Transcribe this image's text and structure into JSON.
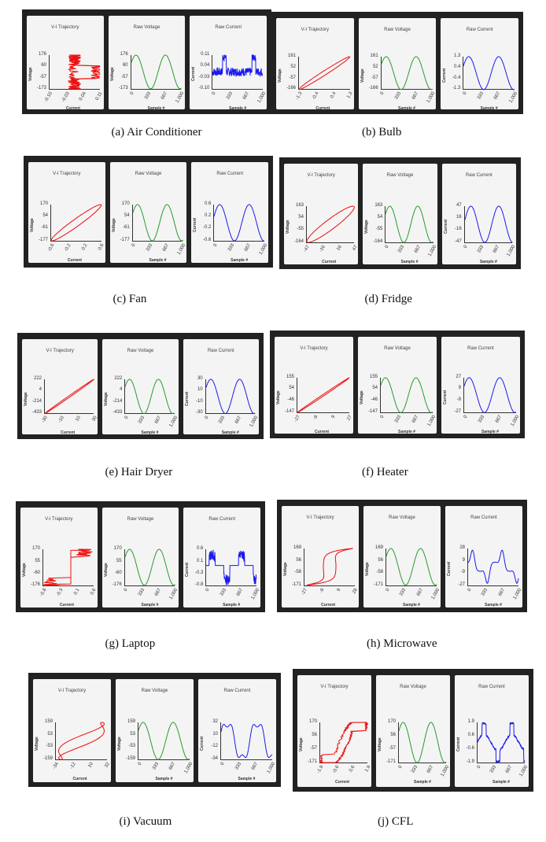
{
  "labels": {
    "vi_title": "V-I Trajectory",
    "voltage_title": "Raw Voltage",
    "current_title": "Raw Current",
    "voltage_axis": "Voltage",
    "current_axis": "Current",
    "sample_axis": "Sample #",
    "sample_ticks": [
      "0",
      "333",
      "667",
      "1,000"
    ]
  },
  "colors": {
    "vi": "#ee1111",
    "voltage": "#2a9a2a",
    "current": "#1a1aee",
    "panel_bg": "#222222",
    "card_bg": "#f4f4f4"
  },
  "panels": [
    {
      "caption": "(a) Air Conditioner",
      "voltage_ticks": [
        "176",
        "60",
        "-57",
        "-173"
      ],
      "vi_current_ticks": [
        "-0.10",
        "-0.03",
        "0.04",
        "0.11"
      ],
      "current_ticks": [
        "0.11",
        "0.04",
        "-0.03",
        "-0.10"
      ]
    },
    {
      "caption": "(b) Bulb",
      "voltage_ticks": [
        "161",
        "52",
        "-57",
        "-166"
      ],
      "vi_current_ticks": [
        "-1.3",
        "-0.4",
        "0.4",
        "1.3"
      ],
      "current_ticks": [
        "1.3",
        "0.4",
        "-0.4",
        "-1.3"
      ]
    },
    {
      "caption": "(c) Fan",
      "voltage_ticks": [
        "170",
        "54",
        "-61",
        "-177"
      ],
      "vi_current_ticks": [
        "-0.6",
        "-0.2",
        "0.2",
        "0.6"
      ],
      "current_ticks": [
        "0.6",
        "0.2",
        "-0.2",
        "-0.6"
      ]
    },
    {
      "caption": "(d) Fridge",
      "voltage_ticks": [
        "163",
        "54",
        "-55",
        "-164"
      ],
      "vi_current_ticks": [
        "-47",
        "-16",
        "16",
        "47"
      ],
      "current_ticks": [
        "47",
        "16",
        "-16",
        "-47"
      ]
    },
    {
      "caption": "(e) Hair Dryer",
      "voltage_ticks": [
        "222",
        "4",
        "-214",
        "-433"
      ],
      "vi_current_ticks": [
        "-30",
        "-10",
        "10",
        "30"
      ],
      "current_ticks": [
        "30",
        "10",
        "-10",
        "-30"
      ]
    },
    {
      "caption": "(f) Heater",
      "voltage_ticks": [
        "155",
        "54",
        "-46",
        "-147"
      ],
      "vi_current_ticks": [
        "-27",
        "-9",
        "9",
        "27"
      ],
      "current_ticks": [
        "27",
        "9",
        "-9",
        "-27"
      ]
    },
    {
      "caption": "(g) Laptop",
      "voltage_ticks": [
        "170",
        "55",
        "-60",
        "-176"
      ],
      "vi_current_ticks": [
        "-0.8",
        "-0.3",
        "0.1",
        "0.6"
      ],
      "current_ticks": [
        "0.6",
        "0.1",
        "-0.3",
        "-0.8"
      ]
    },
    {
      "caption": "(h) Microwave",
      "voltage_ticks": [
        "169",
        "56",
        "-58",
        "-171"
      ],
      "vi_current_ticks": [
        "-27",
        "-9",
        "9",
        "28"
      ],
      "current_ticks": [
        "28",
        "9",
        "-9",
        "-27"
      ]
    },
    {
      "caption": "(i) Vacuum",
      "voltage_ticks": [
        "159",
        "53",
        "-53",
        "-159"
      ],
      "vi_current_ticks": [
        "-34",
        "-12",
        "10",
        "32"
      ],
      "current_ticks": [
        "32",
        "10",
        "-12",
        "-34"
      ]
    },
    {
      "caption": "(j) CFL",
      "voltage_ticks": [
        "170",
        "56",
        "-57",
        "-171"
      ],
      "vi_current_ticks": [
        "-1.9",
        "-0.6",
        "0.6",
        "1.9"
      ],
      "current_ticks": [
        "1.9",
        "0.6",
        "-0.6",
        "-1.9"
      ]
    }
  ]
}
